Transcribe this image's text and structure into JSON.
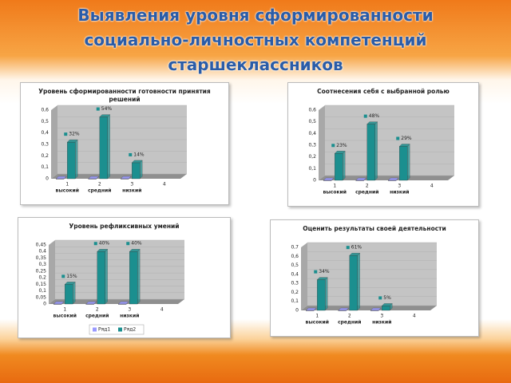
{
  "title": "Выявления  уровня сформированности социально-личностных компетенций старшеклассников",
  "chart_data": [
    {
      "type": "bar",
      "title": "Уровень сформированности готовности принятия решений",
      "categories": [
        "1",
        "2",
        "3",
        "4"
      ],
      "category_labels": [
        "высокий",
        "средний",
        "низкий",
        null
      ],
      "series": [
        {
          "color": "#9999ff",
          "values": [
            0,
            0,
            0,
            null
          ]
        },
        {
          "color": "#1b8f8f",
          "values": [
            0.32,
            0.54,
            0.14,
            null
          ],
          "value_labels": [
            "32%",
            "54%",
            "14%",
            null
          ]
        }
      ],
      "ylim": [
        0,
        0.6
      ],
      "yticks": [
        0,
        {
          "value": 0.1,
          "label": "0,1"
        },
        {
          "value": 0.2,
          "label": "0,2"
        },
        {
          "value": 0.3,
          "label": "0,3"
        },
        {
          "value": 0.4,
          "label": "0,4"
        },
        {
          "value": 0.5,
          "label": "0,5"
        },
        {
          "value": 0.6,
          "label": "0,6"
        }
      ]
    },
    {
      "type": "bar",
      "title": "Соотнесения себя с выбранной ролью",
      "categories": [
        "1",
        "2",
        "3",
        "4"
      ],
      "category_labels": [
        "высокий",
        "средний",
        "низкий",
        null
      ],
      "series": [
        {
          "color": "#9999ff",
          "values": [
            0,
            0,
            0,
            null
          ]
        },
        {
          "color": "#1b8f8f",
          "values": [
            0.23,
            0.48,
            0.29,
            null
          ],
          "value_labels": [
            "23%",
            "48%",
            "29%",
            null
          ]
        }
      ],
      "ylim": [
        0,
        0.6
      ],
      "yticks": [
        0,
        {
          "value": 0.1,
          "label": "0,1"
        },
        {
          "value": 0.2,
          "label": "0,2"
        },
        {
          "value": 0.3,
          "label": "0,3"
        },
        {
          "value": 0.4,
          "label": "0,4"
        },
        {
          "value": 0.5,
          "label": "0,5"
        },
        {
          "value": 0.6,
          "label": "0,6"
        }
      ]
    },
    {
      "type": "bar",
      "title": "Уровень рефликсивных умений",
      "categories": [
        "1",
        "2",
        "3",
        "4"
      ],
      "category_labels": [
        "высокий",
        "средний",
        "низкий",
        null
      ],
      "series": [
        {
          "name": "Ряд1",
          "color": "#9999ff",
          "values": [
            0,
            0,
            0,
            null
          ]
        },
        {
          "name": "Ряд2",
          "color": "#1b8f8f",
          "values": [
            0.15,
            0.4,
            0.4,
            null
          ],
          "value_labels": [
            "15%",
            "40%",
            "40%",
            null
          ]
        }
      ],
      "ylim": [
        0,
        0.45
      ],
      "yticks": [
        0,
        {
          "value": 0.05,
          "label": "0,05"
        },
        {
          "value": 0.1,
          "label": "0,1"
        },
        {
          "value": 0.15,
          "label": "0,15"
        },
        {
          "value": 0.2,
          "label": "0,2"
        },
        {
          "value": 0.25,
          "label": "0,25"
        },
        {
          "value": 0.3,
          "label": "0,3"
        },
        {
          "value": 0.35,
          "label": "0,35"
        },
        {
          "value": 0.4,
          "label": "0,4"
        },
        {
          "value": 0.45,
          "label": "0,45"
        }
      ],
      "legend": "bottom"
    },
    {
      "type": "bar",
      "title": "Оценить результаты своей деятельности",
      "categories": [
        "1",
        "2",
        "3",
        "4"
      ],
      "category_labels": [
        "высокий",
        "средний",
        "низкий",
        null
      ],
      "series": [
        {
          "color": "#9999ff",
          "values": [
            0,
            0,
            0,
            null
          ]
        },
        {
          "color": "#1b8f8f",
          "values": [
            0.34,
            0.61,
            0.05,
            null
          ],
          "value_labels": [
            "34%",
            "61%",
            "5%",
            null
          ]
        }
      ],
      "ylim": [
        0,
        0.7
      ],
      "yticks": [
        0,
        {
          "value": 0.1,
          "label": "0,1"
        },
        {
          "value": 0.2,
          "label": "0,2"
        },
        {
          "value": 0.3,
          "label": "0,3"
        },
        {
          "value": 0.4,
          "label": "0,4"
        },
        {
          "value": 0.5,
          "label": "0,5"
        },
        {
          "value": 0.6,
          "label": "0,6"
        },
        {
          "value": 0.7,
          "label": "0,7"
        }
      ]
    }
  ]
}
